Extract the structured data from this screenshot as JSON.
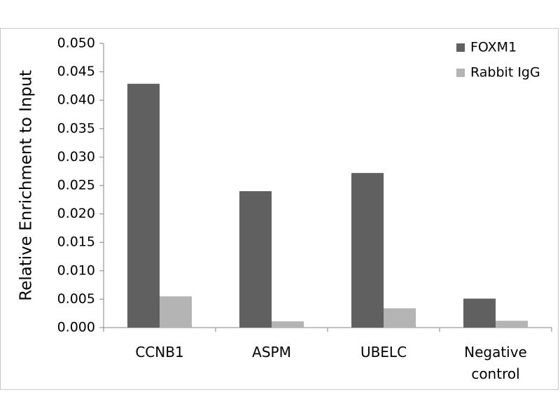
{
  "chart_data": {
    "type": "bar",
    "y_label": "Relative Enrichment to Input",
    "categories": [
      "CCNB1",
      "ASPM",
      "UBELC",
      "Negative control"
    ],
    "series": [
      {
        "name": "FOXM1",
        "color": "#606060",
        "values": [
          0.0429,
          0.024,
          0.0272,
          0.0051
        ]
      },
      {
        "name": "Rabbit IgG",
        "color": "#b4b4b4",
        "values": [
          0.0055,
          0.0011,
          0.0034,
          0.0012
        ]
      }
    ],
    "ylim": [
      0,
      0.05
    ],
    "yticks": [
      {
        "value": 0,
        "label": "0.000"
      },
      {
        "value": 0.005,
        "label": "0.005"
      },
      {
        "value": 0.01,
        "label": "0.010"
      },
      {
        "value": 0.015,
        "label": "0.015"
      },
      {
        "value": 0.02,
        "label": "0.020"
      },
      {
        "value": 0.025,
        "label": "0.025"
      },
      {
        "value": 0.03,
        "label": "0.030"
      },
      {
        "value": 0.035,
        "label": "0.035"
      },
      {
        "value": 0.04,
        "label": "0.040"
      },
      {
        "value": 0.045,
        "label": "0.045"
      },
      {
        "value": 0.05,
        "label": "0.050"
      }
    ],
    "legend": "top-right"
  }
}
